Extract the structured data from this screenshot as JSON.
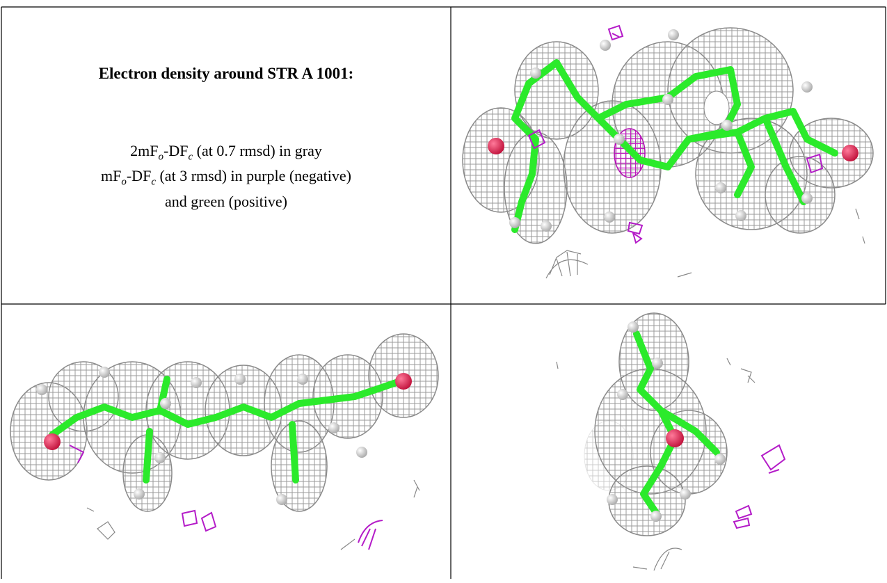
{
  "title": "Electron density around STR A 1001:",
  "legend": [
    [
      "2mF",
      "o",
      "-DF",
      "c",
      " (at 0.7 rmsd) in gray"
    ],
    [
      "mF",
      "o",
      "-DF",
      "c",
      " (at 3 rmsd) in purple (negative)"
    ],
    [
      "and green (positive)"
    ]
  ]
}
